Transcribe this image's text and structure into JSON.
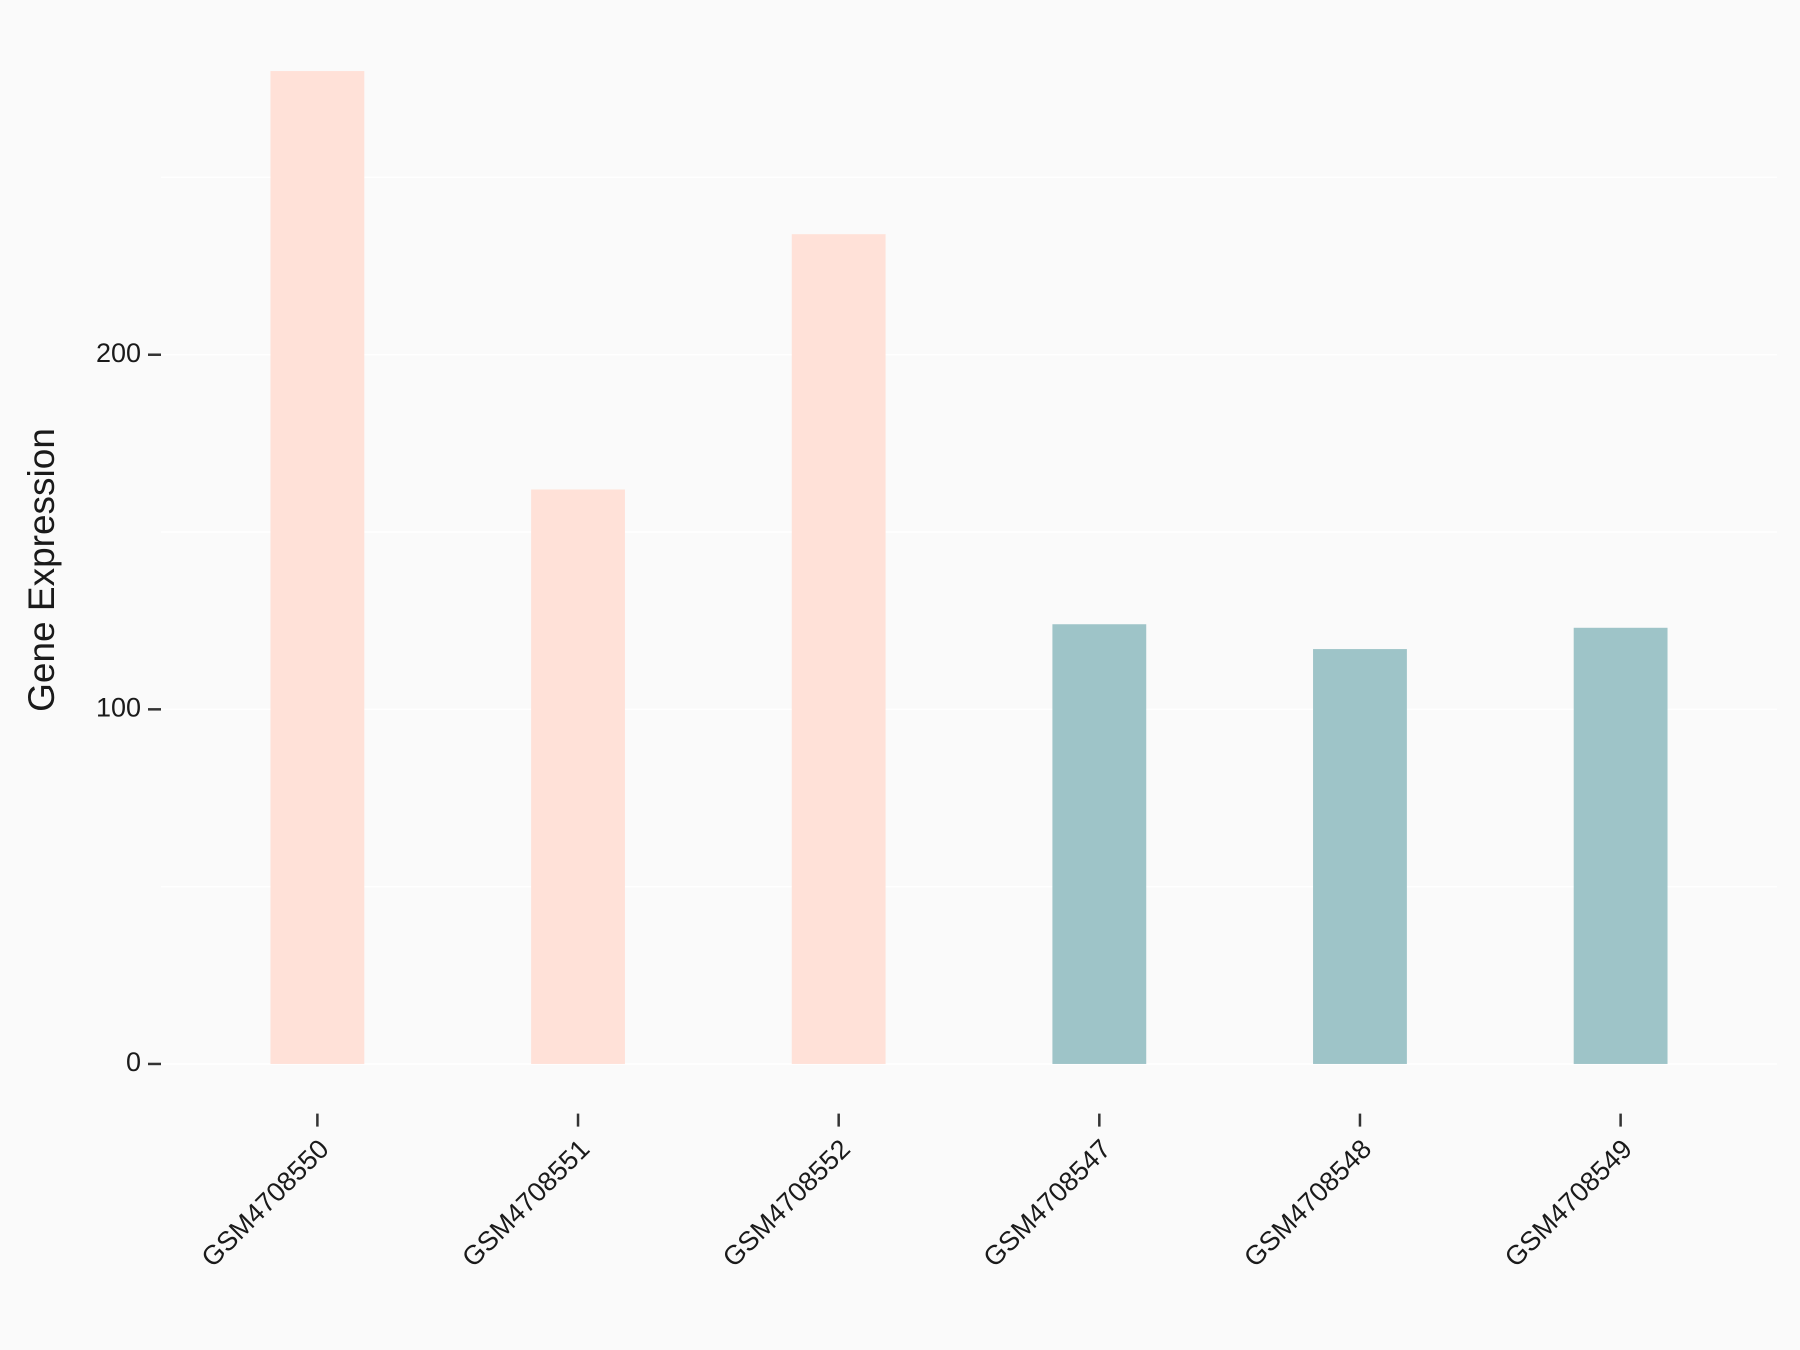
{
  "chart_data": {
    "type": "bar",
    "y_label": "Gene Expression",
    "categories": [
      "GSM4708550",
      "GSM4708551",
      "GSM4708552",
      "GSM4708547",
      "GSM4708548",
      "GSM4708549"
    ],
    "values": [
      280,
      162,
      234,
      124,
      117,
      123
    ],
    "colors": [
      "#ffe1d8",
      "#ffe1d8",
      "#ffe1d8",
      "#9ec4c8",
      "#9ec4c8",
      "#9ec4c8"
    ],
    "ylim": [
      -14,
      294
    ],
    "yticks": [
      0,
      100,
      200
    ],
    "minor_yticks": [
      50,
      150,
      250
    ],
    "grid": true
  }
}
